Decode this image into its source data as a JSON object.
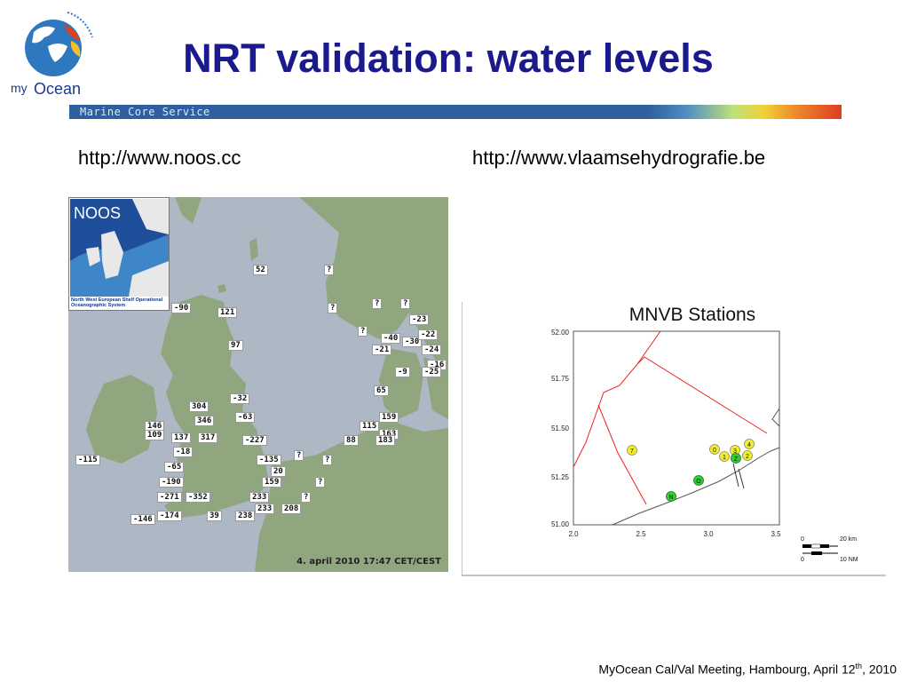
{
  "logo": {
    "text_my": "my",
    "text_ocean": "Ocean",
    "icon": "globe-logo-icon"
  },
  "title": "NRT validation: water levels",
  "banner": {
    "text": "Marine Core Service"
  },
  "urls": {
    "left": "http://www.noos.cc",
    "right": "http://www.vlaamsehydrografie.be"
  },
  "noos_map": {
    "inset_title": "NOOS",
    "inset_caption": "North West European Shelf Operational Oceanographic System",
    "timestamp": "4. april 2010  17:47 CET/CEST",
    "labels": [
      {
        "t": "52"
      },
      {
        "t": "?"
      },
      {
        "t": "-90"
      },
      {
        "t": "121"
      },
      {
        "t": "?"
      },
      {
        "t": "?"
      },
      {
        "t": "?"
      },
      {
        "t": "-23"
      },
      {
        "t": "?"
      },
      {
        "t": "-40"
      },
      {
        "t": "-30"
      },
      {
        "t": "-22"
      },
      {
        "t": "-21"
      },
      {
        "t": "-24"
      },
      {
        "t": "97"
      },
      {
        "t": "-16"
      },
      {
        "t": "-9"
      },
      {
        "t": "-25"
      },
      {
        "t": "65"
      },
      {
        "t": "-32"
      },
      {
        "t": "304"
      },
      {
        "t": "-63"
      },
      {
        "t": "346"
      },
      {
        "t": "159"
      },
      {
        "t": "115"
      },
      {
        "t": "146"
      },
      {
        "t": "109"
      },
      {
        "t": "137"
      },
      {
        "t": "317"
      },
      {
        "t": "-227"
      },
      {
        "t": "88"
      },
      {
        "t": "163"
      },
      {
        "t": "183"
      },
      {
        "t": "-18"
      },
      {
        "t": "?"
      },
      {
        "t": "?"
      },
      {
        "t": "-115"
      },
      {
        "t": "-135"
      },
      {
        "t": "-65"
      },
      {
        "t": "20"
      },
      {
        "t": "-190"
      },
      {
        "t": "159"
      },
      {
        "t": "?"
      },
      {
        "t": "-271"
      },
      {
        "t": "-352"
      },
      {
        "t": "233"
      },
      {
        "t": "?"
      },
      {
        "t": "233"
      },
      {
        "t": "208"
      },
      {
        "t": "-146"
      },
      {
        "t": "-174"
      },
      {
        "t": "39"
      },
      {
        "t": "238"
      }
    ]
  },
  "mnvb": {
    "title": "MNVB Stations",
    "y_ticks": [
      "52.00",
      "51.75",
      "51.50",
      "51.25",
      "51.00"
    ],
    "x_ticks": [
      "2.0",
      "2.5",
      "3.0",
      "3.5"
    ],
    "stations_yellow": [
      "7",
      "0",
      "3",
      "4",
      "1",
      "2"
    ],
    "stations_green": [
      "Z",
      "O",
      "N"
    ],
    "scale_km": "20 km",
    "scale_nm": "10 NM",
    "scale_zero_a": "0",
    "scale_zero_b": "0"
  },
  "footer": {
    "text": "MyOcean Cal/Val Meeting, Hambourg, April 12",
    "sup": "th",
    "year": ", 2010"
  }
}
